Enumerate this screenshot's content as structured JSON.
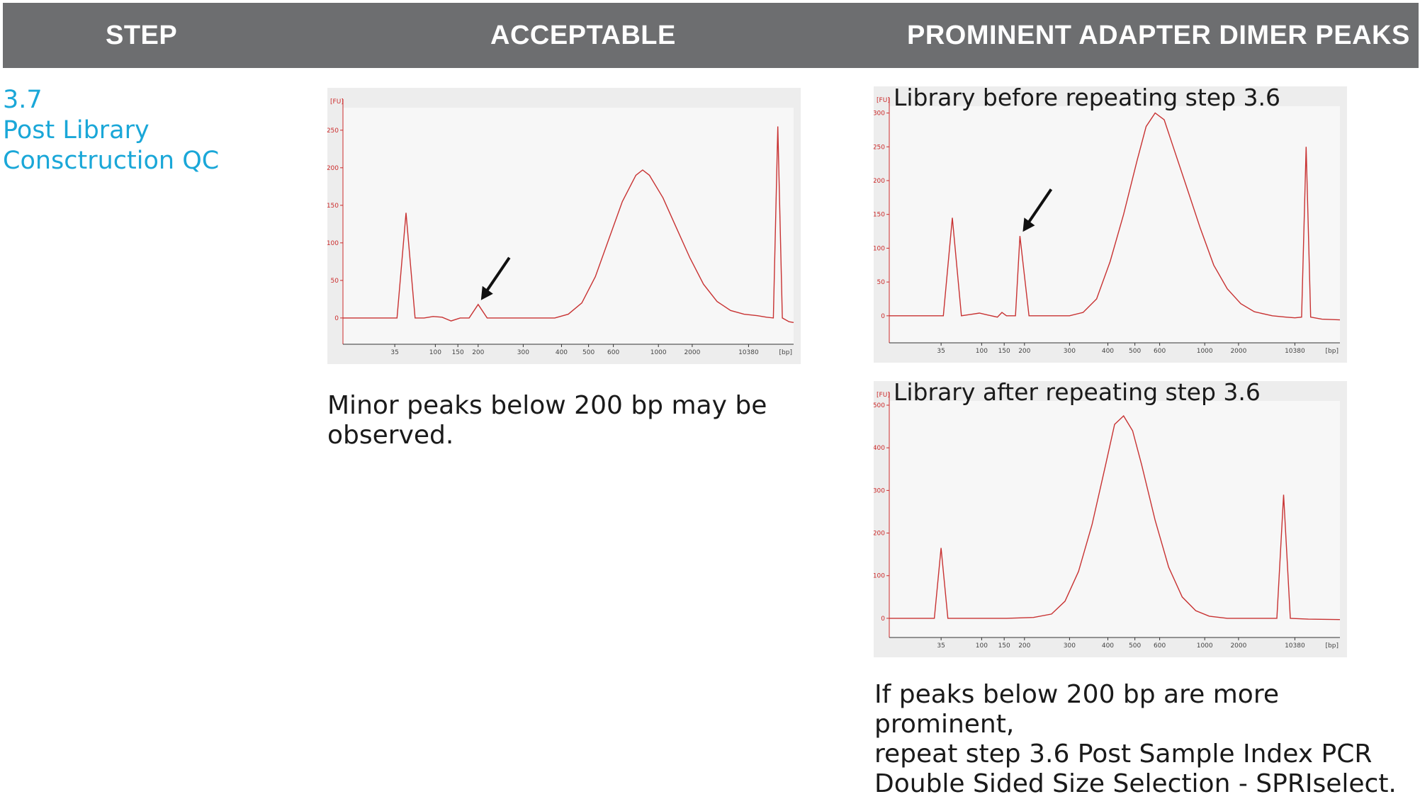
{
  "header": {
    "col_step": "STEP",
    "col_acceptable": "ACCEPTABLE",
    "col_dimer": "PROMINENT ADAPTER DIMER PEAKS"
  },
  "step": {
    "number": "3.7",
    "title_line1": "Post Library",
    "title_line2": "Consctruction QC"
  },
  "captions": {
    "acceptable_line1": "Minor peaks below 200 bp may be",
    "acceptable_line2": "observed.",
    "dimer_line1": "If peaks below 200 bp are more prominent,",
    "dimer_line2": "repeat step 3.6 Post Sample Index PCR",
    "dimer_line3": "Double Sided Size Selection - SPRIselect."
  },
  "colors": {
    "header_bg": "#6d6e70",
    "step_text": "#1aa7d8",
    "trace": "#c83232",
    "axis": "#cc2b2b",
    "panel_bg": "#ededed"
  },
  "chart_data": [
    {
      "type": "line",
      "title": "",
      "ylabel": "[FU]",
      "xlabel": "[bp]",
      "yticks": [
        0,
        50,
        100,
        150,
        200,
        250
      ],
      "ylim": [
        -35,
        280
      ],
      "xticks": [
        "35",
        "100",
        "150",
        "200",
        "300",
        "400",
        "500",
        "600",
        "1000",
        "2000",
        "10380"
      ],
      "annotation": "arrow pointing to adapter dimer peak near 120 bp",
      "series": [
        {
          "points": [
            [
              0,
              0
            ],
            [
              12,
              0
            ],
            [
              14,
              140
            ],
            [
              16,
              0
            ],
            [
              18,
              0
            ],
            [
              20,
              2
            ],
            [
              22,
              1
            ],
            [
              24,
              -4
            ],
            [
              26,
              0
            ],
            [
              28,
              0
            ],
            [
              30,
              18
            ],
            [
              32,
              0
            ],
            [
              36,
              0
            ],
            [
              40,
              0
            ],
            [
              44,
              0
            ],
            [
              47,
              0
            ],
            [
              50,
              5
            ],
            [
              53,
              20
            ],
            [
              56,
              55
            ],
            [
              59,
              105
            ],
            [
              62,
              155
            ],
            [
              65,
              190
            ],
            [
              66.5,
              197
            ],
            [
              68,
              190
            ],
            [
              71,
              160
            ],
            [
              74,
              120
            ],
            [
              77,
              80
            ],
            [
              80,
              45
            ],
            [
              83,
              22
            ],
            [
              86,
              10
            ],
            [
              89,
              5
            ],
            [
              92,
              3
            ],
            [
              94,
              1
            ],
            [
              95.5,
              0
            ],
            [
              96.5,
              255
            ],
            [
              97.5,
              0
            ],
            [
              99,
              -5
            ],
            [
              100,
              -6
            ]
          ]
        }
      ]
    },
    {
      "type": "line",
      "title": "Library before repeating step 3.6",
      "ylabel": "[FU]",
      "xlabel": "[bp]",
      "yticks": [
        0,
        50,
        100,
        150,
        200,
        250,
        300
      ],
      "ylim": [
        -40,
        310
      ],
      "xticks": [
        "35",
        "100",
        "150",
        "200",
        "300",
        "400",
        "500",
        "600",
        "1000",
        "2000",
        "10380"
      ],
      "annotation": "arrow pointing to adapter dimer peak near 120 bp",
      "series": [
        {
          "points": [
            [
              0,
              0
            ],
            [
              12,
              0
            ],
            [
              14,
              145
            ],
            [
              16,
              0
            ],
            [
              18,
              2
            ],
            [
              20,
              4
            ],
            [
              22,
              1
            ],
            [
              24,
              -2
            ],
            [
              25,
              5
            ],
            [
              26,
              0
            ],
            [
              28,
              0
            ],
            [
              29,
              118
            ],
            [
              31,
              0
            ],
            [
              35,
              0
            ],
            [
              40,
              0
            ],
            [
              43,
              5
            ],
            [
              46,
              25
            ],
            [
              49,
              80
            ],
            [
              52,
              150
            ],
            [
              55,
              230
            ],
            [
              57,
              280
            ],
            [
              59,
              300
            ],
            [
              61,
              290
            ],
            [
              63,
              250
            ],
            [
              66,
              190
            ],
            [
              69,
              130
            ],
            [
              72,
              75
            ],
            [
              75,
              40
            ],
            [
              78,
              18
            ],
            [
              81,
              6
            ],
            [
              85,
              0
            ],
            [
              88,
              -2
            ],
            [
              90,
              -3
            ],
            [
              91.5,
              -2
            ],
            [
              92.5,
              250
            ],
            [
              93.5,
              -2
            ],
            [
              96,
              -5
            ],
            [
              100,
              -6
            ]
          ]
        }
      ]
    },
    {
      "type": "line",
      "title": "Library after repeating step 3.6",
      "ylabel": "[FU]",
      "xlabel": "[bp]",
      "yticks": [
        0,
        100,
        200,
        300,
        400,
        500
      ],
      "ylim": [
        -45,
        510
      ],
      "xticks": [
        "35",
        "100",
        "150",
        "200",
        "300",
        "400",
        "500",
        "600",
        "1000",
        "2000",
        "10380"
      ],
      "annotation": "",
      "series": [
        {
          "points": [
            [
              0,
              0
            ],
            [
              10,
              0
            ],
            [
              11.5,
              165
            ],
            [
              13,
              0
            ],
            [
              16,
              0
            ],
            [
              20,
              0
            ],
            [
              26,
              0
            ],
            [
              32,
              2
            ],
            [
              36,
              10
            ],
            [
              39,
              40
            ],
            [
              42,
              110
            ],
            [
              45,
              220
            ],
            [
              48,
              360
            ],
            [
              50,
              455
            ],
            [
              52,
              475
            ],
            [
              54,
              440
            ],
            [
              56,
              360
            ],
            [
              59,
              230
            ],
            [
              62,
              120
            ],
            [
              65,
              50
            ],
            [
              68,
              18
            ],
            [
              71,
              5
            ],
            [
              75,
              0
            ],
            [
              80,
              0
            ],
            [
              84,
              0
            ],
            [
              86,
              0
            ],
            [
              87.5,
              290
            ],
            [
              89,
              0
            ],
            [
              93,
              -2
            ],
            [
              100,
              -3
            ]
          ]
        }
      ]
    }
  ]
}
